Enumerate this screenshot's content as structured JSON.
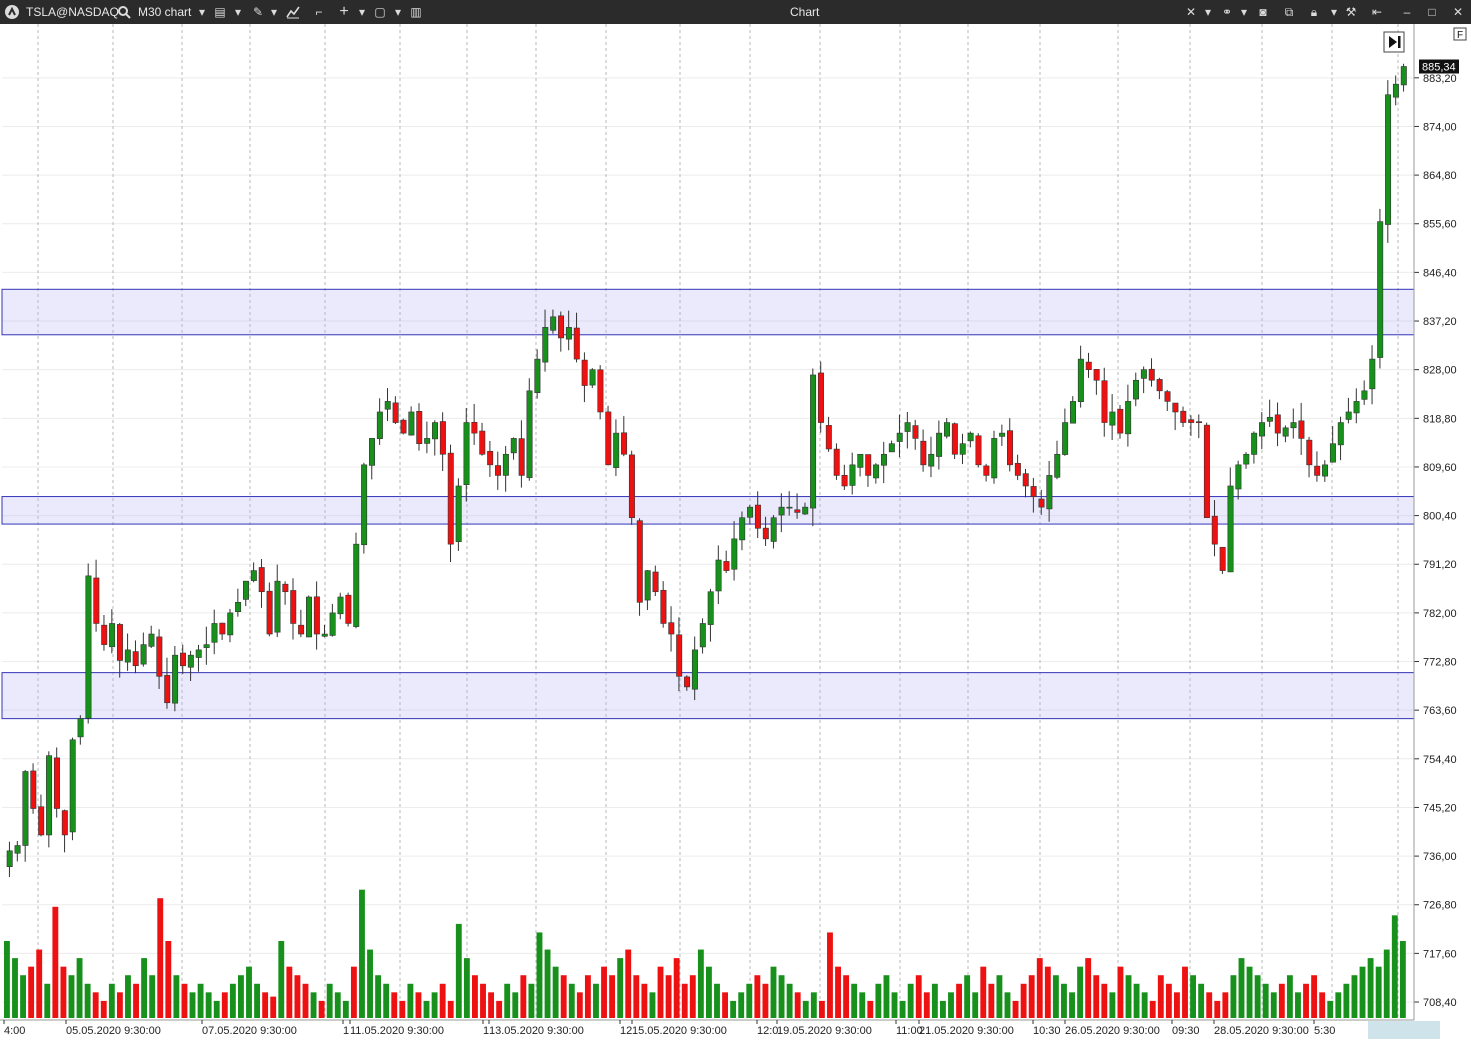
{
  "toolbar": {
    "instrument": "TSLA@NASDAQ",
    "timeframe": "M30 chart",
    "window_title": "Chart",
    "icons": [
      "app-logo-icon",
      "search-icon",
      "chart-type-icon",
      "pencil-icon",
      "indicator-icon",
      "template-icon",
      "crosshair-icon",
      "layout-icon",
      "panel-icon",
      "magnet-icon",
      "link-icon",
      "camera-icon",
      "duplicate-icon",
      "lock-icon",
      "settings-icon",
      "pin-icon",
      "minimize-icon",
      "maximize-icon",
      "close-icon"
    ]
  },
  "chart_data": {
    "type": "candlestick",
    "instrument": "TSLA@NASDAQ",
    "timeframe": "M30",
    "y_ticks": [
      "883,20",
      "874,00",
      "864,80",
      "855,60",
      "846,40",
      "837,20",
      "828,00",
      "818,80",
      "809,60",
      "800,40",
      "791,20",
      "782,00",
      "772,80",
      "763,60",
      "754,40",
      "745,20",
      "736,00",
      "726,80",
      "717,60",
      "708,40"
    ],
    "ylim": [
      705,
      893
    ],
    "current_price": "885,34",
    "x_labels": [
      "4:00",
      "05.05.2020 9:30:00",
      "07.05.2020 9:30:00",
      "1",
      "11.05.2020 9:30:00",
      "1",
      "13.05.2020 9:30:00",
      "12",
      "15.05.2020 9:30:00",
      "12:0",
      "19.05.2020 9:30:00",
      "11:00",
      "21.05.2020 9:30:00",
      "10:30",
      "26.05.2020 9:30:00",
      "09:30",
      "28.05.2020 9:30:00",
      "5:30"
    ],
    "zones": [
      {
        "low": 834.6,
        "high": 843.2
      },
      {
        "low": 798.8,
        "high": 804.0
      },
      {
        "low": 762.0,
        "high": 770.7
      }
    ],
    "ohlc_path": [
      737,
      738,
      752,
      745,
      740,
      755,
      745,
      740,
      758,
      762,
      789,
      780,
      776,
      780,
      773,
      775,
      772,
      776,
      778,
      770,
      765,
      774,
      772,
      774,
      775,
      776,
      780,
      778,
      782,
      784,
      788,
      790,
      786,
      778,
      788,
      786,
      780,
      778,
      785,
      778,
      778,
      782,
      785,
      780,
      795,
      810,
      815,
      820,
      822,
      818,
      816,
      820,
      814,
      815,
      818,
      812,
      795,
      806,
      818,
      816,
      812,
      810,
      808,
      812,
      815,
      808,
      824,
      830,
      836,
      838,
      834,
      836,
      830,
      825,
      828,
      820,
      810,
      816,
      812,
      800,
      784,
      790,
      786,
      780,
      778,
      770,
      768,
      775,
      780,
      786,
      792,
      790,
      796,
      800,
      802,
      798,
      796,
      800,
      802,
      802,
      801,
      802,
      827,
      818,
      813,
      808,
      806,
      810,
      812,
      808,
      810,
      812,
      814,
      816,
      818,
      815,
      810,
      812,
      816,
      818,
      812,
      814,
      816,
      810,
      808,
      815,
      816,
      810,
      808,
      806,
      804,
      802,
      808,
      812,
      818,
      822,
      830,
      828,
      826,
      818,
      820,
      816,
      822,
      826,
      828,
      826,
      824,
      822,
      820,
      818,
      818,
      818,
      800,
      795,
      790,
      806,
      810,
      812,
      816,
      818,
      819,
      816,
      817,
      818,
      815,
      810,
      808,
      810,
      814,
      818,
      820,
      822,
      824,
      830,
      856,
      880,
      882,
      885.34
    ],
    "volume_ylim": [
      0,
      180
    ],
    "volume_heights": [
      90,
      70,
      50,
      60,
      80,
      40,
      130,
      60,
      50,
      70,
      40,
      30,
      20,
      40,
      30,
      50,
      40,
      70,
      50,
      140,
      90,
      50,
      40,
      30,
      40,
      30,
      20,
      30,
      40,
      50,
      60,
      40,
      30,
      25,
      90,
      60,
      50,
      40,
      30,
      20,
      40,
      30,
      20,
      60,
      150,
      80,
      50,
      40,
      30,
      20,
      40,
      30,
      20,
      30,
      40,
      20,
      110,
      70,
      50,
      40,
      30,
      20,
      40,
      30,
      50,
      40,
      100,
      80,
      60,
      50,
      40,
      30,
      50,
      40,
      60,
      50,
      70,
      80,
      50,
      40,
      30,
      60,
      50,
      70,
      40,
      50,
      80,
      60,
      40,
      30,
      20,
      30,
      40,
      50,
      40,
      60,
      50,
      40,
      30,
      20,
      30,
      20,
      100,
      60,
      50,
      40,
      30,
      20,
      40,
      50,
      30,
      20,
      40,
      50,
      30,
      40,
      20,
      30,
      40,
      50,
      30,
      60,
      40,
      50,
      30,
      20,
      40,
      50,
      70,
      60,
      50,
      40,
      30,
      60,
      70,
      50,
      40,
      30,
      60,
      50,
      40,
      30,
      20,
      50,
      40,
      30,
      60,
      50,
      40,
      30,
      20,
      30,
      50,
      70,
      60,
      50,
      40,
      30,
      40,
      50,
      30,
      40,
      50,
      30,
      20,
      30,
      40,
      50,
      60,
      70,
      60,
      80,
      120,
      90
    ]
  }
}
